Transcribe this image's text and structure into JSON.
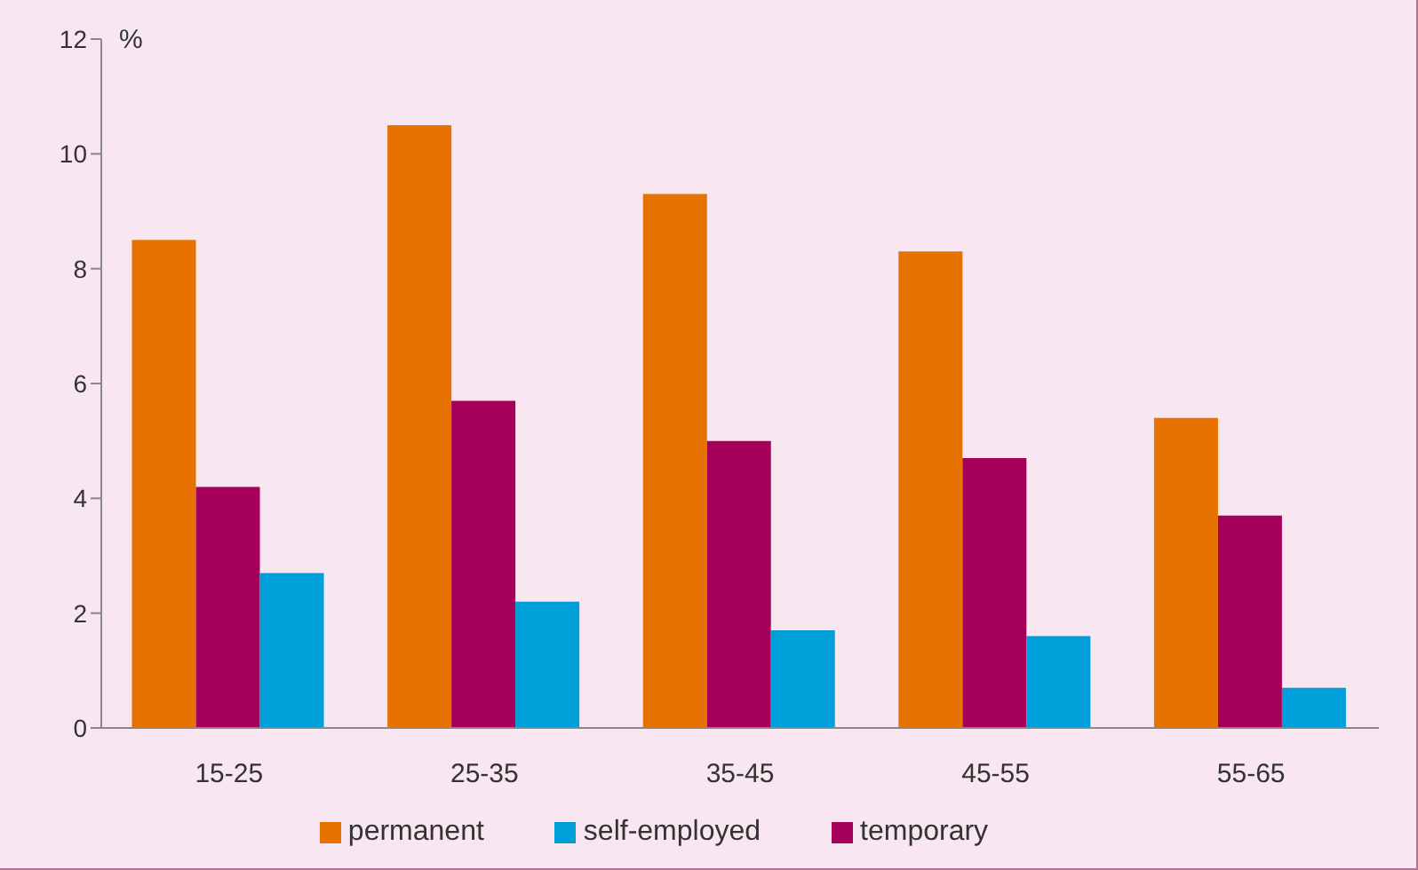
{
  "chart_data": {
    "type": "bar",
    "ylabel": "%",
    "categories": [
      "15-25",
      "25-35",
      "35-45",
      "45-55",
      "55-65"
    ],
    "series": [
      {
        "name": "permanent",
        "color": "#e87200",
        "values": [
          8.5,
          10.5,
          9.3,
          8.3,
          5.4
        ]
      },
      {
        "name": "temporary",
        "color": "#a6005b",
        "values": [
          4.2,
          5.7,
          5.0,
          4.7,
          3.7
        ]
      },
      {
        "name": "self-employed",
        "color": "#009fd9",
        "values": [
          2.7,
          2.2,
          1.7,
          1.6,
          0.7
        ]
      }
    ],
    "ylim": [
      0,
      12
    ],
    "yticks": [
      0,
      2,
      4,
      6,
      8,
      10,
      12
    ],
    "grid": false,
    "legend": "bottom"
  }
}
